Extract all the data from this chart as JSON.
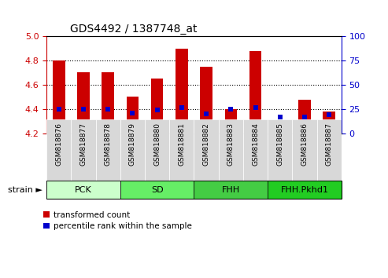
{
  "title": "GDS4492 / 1387748_at",
  "samples": [
    "GSM818876",
    "GSM818877",
    "GSM818878",
    "GSM818879",
    "GSM818880",
    "GSM818881",
    "GSM818882",
    "GSM818883",
    "GSM818884",
    "GSM818885",
    "GSM818886",
    "GSM818887"
  ],
  "transformed_counts": [
    4.8,
    4.7,
    4.7,
    4.5,
    4.65,
    4.9,
    4.75,
    4.4,
    4.88,
    4.29,
    4.48,
    4.38
  ],
  "percentile_ranks": [
    4.4,
    4.4,
    4.4,
    4.37,
    4.39,
    4.41,
    4.36,
    4.4,
    4.41,
    4.335,
    4.335,
    4.355
  ],
  "ylim_left": [
    4.2,
    5.0
  ],
  "ylim_right": [
    0,
    100
  ],
  "yticks_left": [
    4.2,
    4.4,
    4.6,
    4.8,
    5.0
  ],
  "yticks_right": [
    0,
    25,
    50,
    75,
    100
  ],
  "bar_bottom": 4.2,
  "bar_width": 0.5,
  "bar_color": "#cc0000",
  "blue_color": "#0000cc",
  "blue_marker_size": 5,
  "hgrid_vals": [
    4.4,
    4.6,
    4.8
  ],
  "groups": [
    {
      "label": "PCK",
      "start": 0,
      "end": 3,
      "color": "#ccffcc"
    },
    {
      "label": "SD",
      "start": 3,
      "end": 6,
      "color": "#66ee66"
    },
    {
      "label": "FHH",
      "start": 6,
      "end": 9,
      "color": "#44cc44"
    },
    {
      "label": "FHH.Pkhd1",
      "start": 9,
      "end": 12,
      "color": "#22cc22"
    }
  ],
  "legend_labels": [
    "transformed count",
    "percentile rank within the sample"
  ],
  "xlabel_strain": "strain ►",
  "tick_label_bg": "#dddddd",
  "background_color": "#ffffff"
}
